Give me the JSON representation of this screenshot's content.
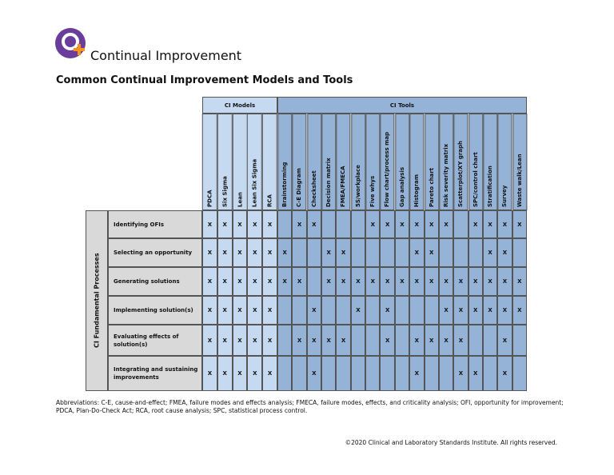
{
  "header": {
    "title": "Continual Improvement",
    "subtitle": "Common Continual Improvement Models and Tools"
  },
  "table": {
    "group_label": "CI Fundamental Processes",
    "column_groups": [
      {
        "name": "CI Models",
        "columns": [
          "PDCA",
          "Six Sigma",
          "Lean",
          "Lean Six Sigma",
          "RCA"
        ]
      },
      {
        "name": "CI Tools",
        "columns": [
          "Brainstorming",
          "C-E Diagram",
          "Checksheet",
          "Decision matrix",
          "FMEA/FMECA",
          "5S/workplace",
          "Five whys",
          "Flow chart/process map",
          "Gap analysis",
          "Histogram",
          "Pareto chart",
          "Risk severity matrix",
          "Scatterplot/XY graph",
          "SPC/control chart",
          "Stratification",
          "Survey",
          "Waste walk/Lean"
        ]
      }
    ],
    "rows": [
      {
        "label": "Identifying OFIs",
        "cells": [
          "X",
          "X",
          "X",
          "X",
          "X",
          null,
          "X",
          "X",
          null,
          null,
          null,
          "X",
          "X",
          "X",
          "X",
          "X",
          "X",
          null,
          "X",
          "X",
          "X",
          "X"
        ]
      },
      {
        "label": "Selecting an opportunity",
        "cells": [
          "X",
          "X",
          "X",
          "X",
          "X",
          "X",
          null,
          null,
          "X",
          "X",
          null,
          null,
          null,
          null,
          "X",
          "X",
          null,
          null,
          null,
          "X",
          "X",
          null
        ]
      },
      {
        "label": "Generating solutions",
        "cells": [
          "X",
          "X",
          "X",
          "X",
          "X",
          "X",
          "X",
          null,
          "X",
          "X",
          "X",
          "X",
          "X",
          "X",
          "X",
          "X",
          "X",
          "X",
          "X",
          "X",
          "X",
          "X"
        ]
      },
      {
        "label": "Implementing solution(s)",
        "cells": [
          "X",
          "X",
          "X",
          "X",
          "X",
          null,
          null,
          "X",
          null,
          null,
          "X",
          null,
          "X",
          null,
          null,
          null,
          "X",
          "X",
          "X",
          "X",
          "X",
          "X"
        ]
      },
      {
        "label": "Evaluating effects of solution(s)",
        "cells": [
          "X",
          "X",
          "X",
          "X",
          "X",
          null,
          "X",
          "X",
          "X",
          "X",
          null,
          null,
          "X",
          null,
          "X",
          "X",
          "X",
          "X",
          null,
          null,
          "X",
          null
        ]
      },
      {
        "label": "Integrating and sustaining improvements",
        "cells": [
          "X",
          "X",
          "X",
          "X",
          "X",
          null,
          null,
          "X",
          null,
          null,
          null,
          null,
          null,
          null,
          "X",
          null,
          null,
          "X",
          "X",
          null,
          "X",
          null
        ]
      }
    ]
  },
  "footer": {
    "abbreviations": "Abbreviations: C-E, cause-and-effect; FMEA, failure modes and effects analysis; FMECA, failure modes, effects, and criticality analysis; OFI, opportunity for improvement; PDCA, Plan-Do-Check Act; RCA, root cause analysis; SPC, statistical process control.",
    "copyright": "©2020 Clinical and Laboratory Standards Institute. All rights reserved."
  }
}
